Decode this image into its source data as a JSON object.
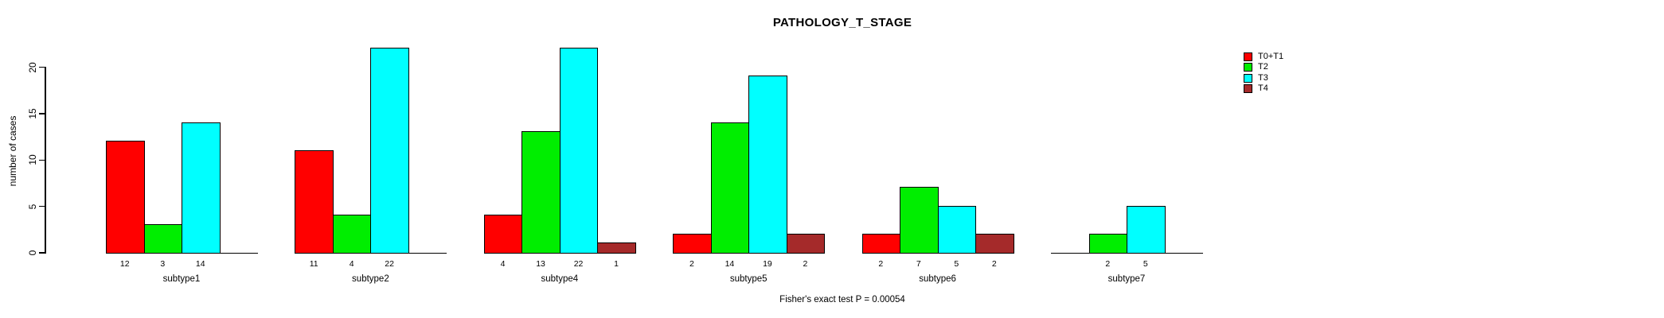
{
  "chart_data": {
    "type": "bar",
    "title": "PATHOLOGY_T_STAGE",
    "xlabel": "",
    "ylabel": "number of cases",
    "annotation": "Fisher's exact test P = 0.00054",
    "categories": [
      "subtype1",
      "subtype2",
      "subtype4",
      "subtype5",
      "subtype6",
      "subtype7"
    ],
    "series": [
      {
        "name": "T0+T1",
        "color": "#FF0000",
        "values": [
          12,
          11,
          4,
          2,
          2,
          0
        ]
      },
      {
        "name": "T2",
        "color": "#00EE00",
        "values": [
          3,
          4,
          13,
          14,
          7,
          2
        ]
      },
      {
        "name": "T3",
        "color": "#00FFFF",
        "values": [
          14,
          22,
          22,
          19,
          5,
          5
        ]
      },
      {
        "name": "T4",
        "color": "#A52A2A",
        "values": [
          0,
          0,
          1,
          2,
          2,
          0
        ]
      }
    ],
    "y_ticks": [
      0,
      5,
      10,
      15,
      20
    ],
    "ylim": [
      0,
      23
    ],
    "grid": false,
    "legend_position": "top-right",
    "bar_value_labels": "values printed below baseline under each bar; zero values drawn as flat line with no label"
  }
}
